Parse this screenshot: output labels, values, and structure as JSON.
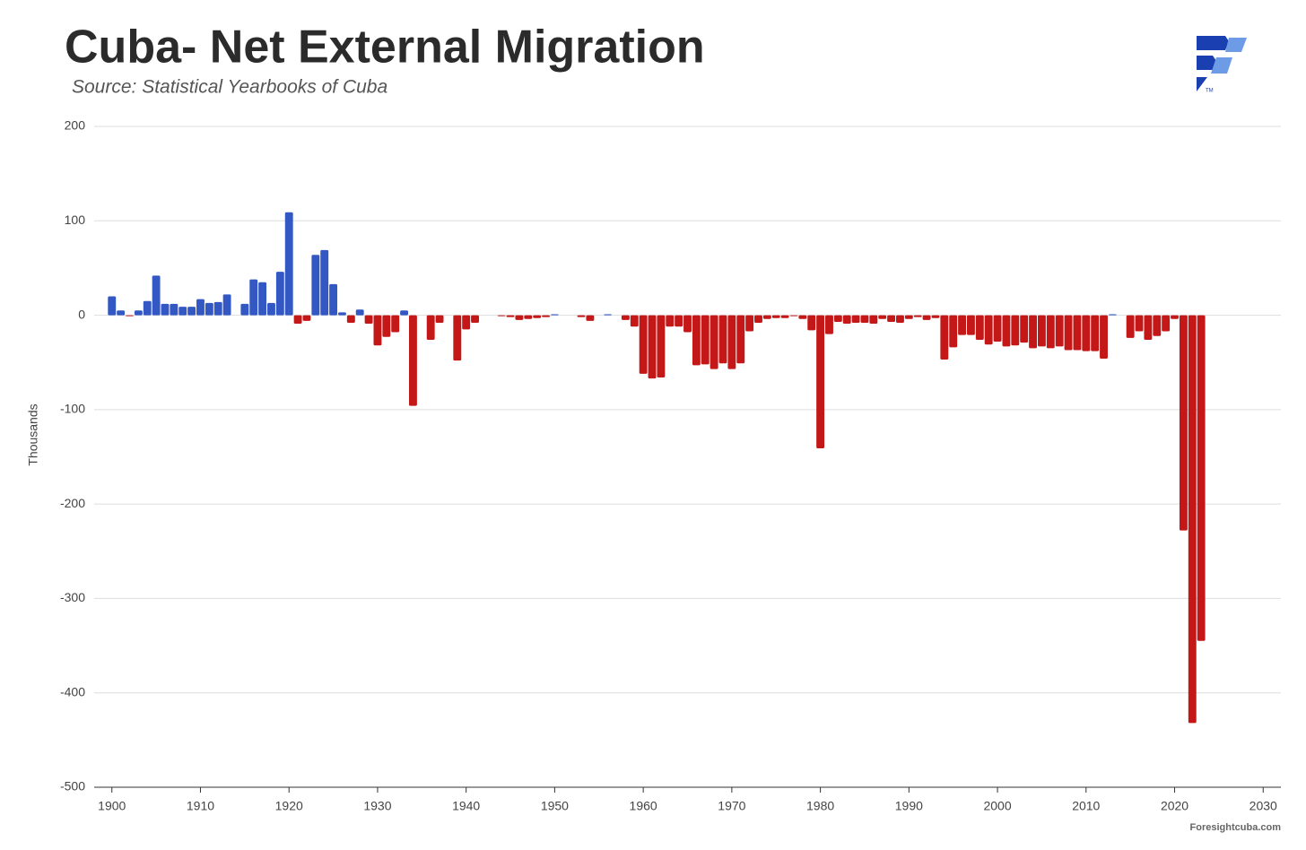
{
  "chart_data": {
    "type": "bar",
    "title": "Cuba- Net External Migration",
    "subtitle": "Source: Statistical Yearbooks of Cuba",
    "y_label": "Thousands",
    "credit": "Foresightcuba.com",
    "logo_mark": "TM",
    "positive_color": "#3358c4",
    "negative_color": "#c41717",
    "x": [
      1900,
      1901,
      1902,
      1903,
      1904,
      1905,
      1906,
      1907,
      1908,
      1909,
      1910,
      1911,
      1912,
      1913,
      1914,
      1915,
      1916,
      1917,
      1918,
      1919,
      1920,
      1921,
      1922,
      1923,
      1924,
      1925,
      1926,
      1927,
      1928,
      1929,
      1930,
      1931,
      1932,
      1933,
      1934,
      1935,
      1936,
      1937,
      1938,
      1939,
      1940,
      1941,
      1942,
      1943,
      1944,
      1945,
      1946,
      1947,
      1948,
      1949,
      1950,
      1951,
      1952,
      1953,
      1954,
      1955,
      1956,
      1957,
      1958,
      1959,
      1960,
      1961,
      1962,
      1963,
      1964,
      1965,
      1966,
      1967,
      1968,
      1969,
      1970,
      1971,
      1972,
      1973,
      1974,
      1975,
      1976,
      1977,
      1978,
      1979,
      1980,
      1981,
      1982,
      1983,
      1984,
      1985,
      1986,
      1987,
      1988,
      1989,
      1990,
      1991,
      1992,
      1993,
      1994,
      1995,
      1996,
      1997,
      1998,
      1999,
      2000,
      2001,
      2002,
      2003,
      2004,
      2005,
      2006,
      2007,
      2008,
      2009,
      2010,
      2011,
      2012,
      2013,
      2014,
      2015,
      2016,
      2017,
      2018,
      2019,
      2020,
      2021,
      2022,
      2023
    ],
    "values": [
      20,
      5,
      -1,
      5,
      15,
      42,
      12,
      12,
      9,
      9,
      17,
      13,
      14,
      22,
      0,
      12,
      38,
      35,
      13,
      46,
      109,
      -9,
      -6,
      64,
      69,
      33,
      3,
      -8,
      6,
      -9,
      -32,
      -23,
      -18,
      5,
      -96,
      0,
      -26,
      -8,
      0,
      -48,
      -15,
      -8,
      0,
      0,
      -1,
      -2,
      -5,
      -4,
      -3,
      -2,
      1,
      0,
      0,
      -2,
      -6,
      0,
      1,
      0,
      -5,
      -12,
      -62,
      -67,
      -66,
      -12,
      -12,
      -18,
      -53,
      -52,
      -57,
      -51,
      -57,
      -51,
      -17,
      -8,
      -4,
      -3,
      -3,
      -1,
      -4,
      -16,
      -141,
      -20,
      -7,
      -9,
      -8,
      -8,
      -9,
      -4,
      -7,
      -8,
      -4,
      -2,
      -5,
      -3,
      -47,
      -34,
      -21,
      -21,
      -26,
      -31,
      -28,
      -33,
      -32,
      -29,
      -35,
      -33,
      -35,
      -33,
      -37,
      -37,
      -38,
      -38,
      -46,
      1,
      0,
      -24,
      -17,
      -26,
      -22,
      -17,
      -4,
      -228,
      -432,
      -345
    ],
    "xlim": [
      1898,
      2032
    ],
    "xticks": [
      1900,
      1910,
      1920,
      1930,
      1940,
      1950,
      1960,
      1970,
      1980,
      1990,
      2000,
      2010,
      2020,
      2030
    ],
    "ylim": [
      -500,
      200
    ],
    "yticks": [
      -500,
      -400,
      -300,
      -200,
      -100,
      0,
      100,
      200
    ],
    "grid": true
  }
}
